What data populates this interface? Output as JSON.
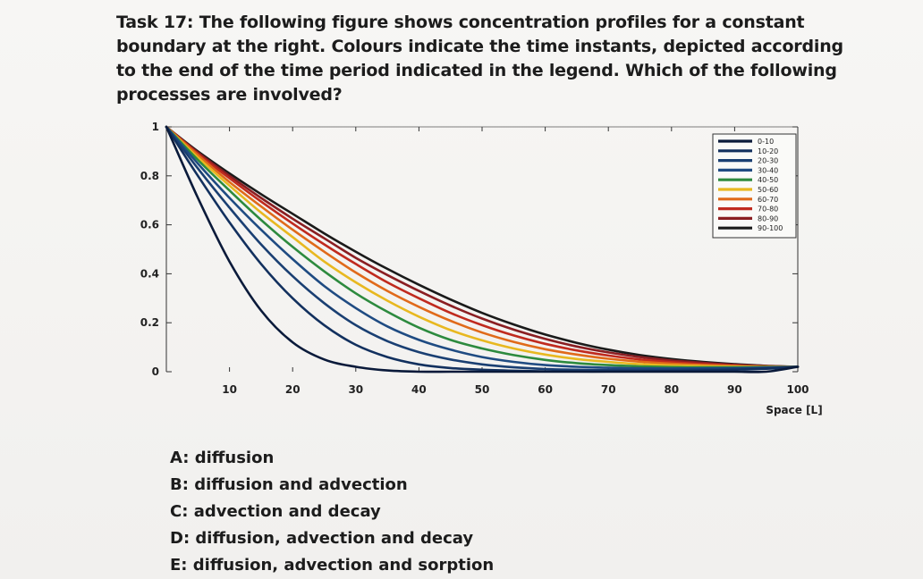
{
  "task": {
    "label": "Task 17:",
    "question": "The following figure shows concentration profiles for a constant boundary at the right. Colours indicate the time instants, depicted according to the end of the time period indicated in the legend. Which of the following processes are involved?"
  },
  "chart_data": {
    "type": "line",
    "xlabel": "Space [L]",
    "ylabel": "",
    "xlim": [
      0,
      100
    ],
    "ylim": [
      0,
      1
    ],
    "x_ticks": [
      10,
      20,
      30,
      40,
      50,
      60,
      70,
      80,
      90,
      100
    ],
    "y_ticks": [
      0,
      0.2,
      0.4,
      0.6,
      0.8,
      1
    ],
    "y_tick_labels": [
      "0",
      "0.2",
      "0.4",
      "0.6",
      "0.8",
      "1"
    ],
    "legend_position": "top-right",
    "x": [
      0,
      5,
      10,
      15,
      20,
      25,
      30,
      35,
      40,
      45,
      50,
      55,
      60,
      65,
      70,
      75,
      80,
      85,
      90,
      95,
      100
    ],
    "series": [
      {
        "name": "0-10",
        "color": "#0a1a3a",
        "values": [
          1.0,
          0.71,
          0.45,
          0.25,
          0.12,
          0.05,
          0.02,
          0.005,
          0.0,
          0.0,
          0.0,
          0.0,
          0.0,
          0.0,
          0.0,
          0.0,
          0.0,
          0.0,
          0.0,
          0.0,
          0.02
        ]
      },
      {
        "name": "10-20",
        "color": "#12305e",
        "values": [
          1.0,
          0.8,
          0.61,
          0.44,
          0.3,
          0.19,
          0.11,
          0.06,
          0.03,
          0.015,
          0.008,
          0.004,
          0.002,
          0.001,
          0.001,
          0.002,
          0.003,
          0.005,
          0.008,
          0.012,
          0.02
        ]
      },
      {
        "name": "20-30",
        "color": "#1a3f72",
        "values": [
          1.0,
          0.83,
          0.67,
          0.52,
          0.39,
          0.28,
          0.19,
          0.125,
          0.08,
          0.05,
          0.03,
          0.018,
          0.011,
          0.008,
          0.007,
          0.007,
          0.008,
          0.01,
          0.012,
          0.015,
          0.02
        ]
      },
      {
        "name": "30-40",
        "color": "#1f4b82",
        "values": [
          1.0,
          0.85,
          0.71,
          0.58,
          0.46,
          0.35,
          0.26,
          0.185,
          0.13,
          0.09,
          0.06,
          0.04,
          0.027,
          0.02,
          0.016,
          0.014,
          0.013,
          0.014,
          0.015,
          0.017,
          0.02
        ]
      },
      {
        "name": "40-50",
        "color": "#2d8a3e",
        "values": [
          1.0,
          0.865,
          0.74,
          0.62,
          0.51,
          0.41,
          0.32,
          0.245,
          0.18,
          0.13,
          0.095,
          0.068,
          0.048,
          0.035,
          0.027,
          0.022,
          0.019,
          0.018,
          0.018,
          0.019,
          0.02
        ]
      },
      {
        "name": "50-60",
        "color": "#e8b820",
        "values": [
          1.0,
          0.875,
          0.76,
          0.65,
          0.55,
          0.45,
          0.365,
          0.29,
          0.225,
          0.17,
          0.128,
          0.095,
          0.07,
          0.052,
          0.04,
          0.031,
          0.026,
          0.023,
          0.021,
          0.02,
          0.02
        ]
      },
      {
        "name": "60-70",
        "color": "#e06a1a",
        "values": [
          1.0,
          0.885,
          0.775,
          0.675,
          0.58,
          0.49,
          0.405,
          0.33,
          0.265,
          0.208,
          0.16,
          0.122,
          0.092,
          0.07,
          0.053,
          0.041,
          0.033,
          0.027,
          0.023,
          0.021,
          0.02
        ]
      },
      {
        "name": "70-80",
        "color": "#c02a1e",
        "values": [
          1.0,
          0.89,
          0.79,
          0.695,
          0.605,
          0.52,
          0.44,
          0.365,
          0.3,
          0.24,
          0.19,
          0.148,
          0.114,
          0.087,
          0.066,
          0.05,
          0.039,
          0.031,
          0.025,
          0.022,
          0.02
        ]
      },
      {
        "name": "80-90",
        "color": "#8a1e22",
        "values": [
          1.0,
          0.895,
          0.8,
          0.71,
          0.625,
          0.545,
          0.465,
          0.395,
          0.33,
          0.27,
          0.217,
          0.172,
          0.134,
          0.103,
          0.079,
          0.06,
          0.046,
          0.036,
          0.028,
          0.023,
          0.02
        ]
      },
      {
        "name": "90-100",
        "color": "#1a1a1a",
        "values": [
          1.0,
          0.9,
          0.81,
          0.725,
          0.645,
          0.565,
          0.49,
          0.42,
          0.355,
          0.295,
          0.24,
          0.193,
          0.152,
          0.118,
          0.09,
          0.068,
          0.052,
          0.04,
          0.031,
          0.024,
          0.02
        ]
      }
    ]
  },
  "answers": [
    {
      "key": "A:",
      "text": "diffusion"
    },
    {
      "key": "B:",
      "text": "diffusion and advection"
    },
    {
      "key": "C:",
      "text": "advection and decay"
    },
    {
      "key": "D:",
      "text": "diffusion, advection and decay"
    },
    {
      "key": "E:",
      "text": "diffusion, advection and sorption"
    }
  ]
}
